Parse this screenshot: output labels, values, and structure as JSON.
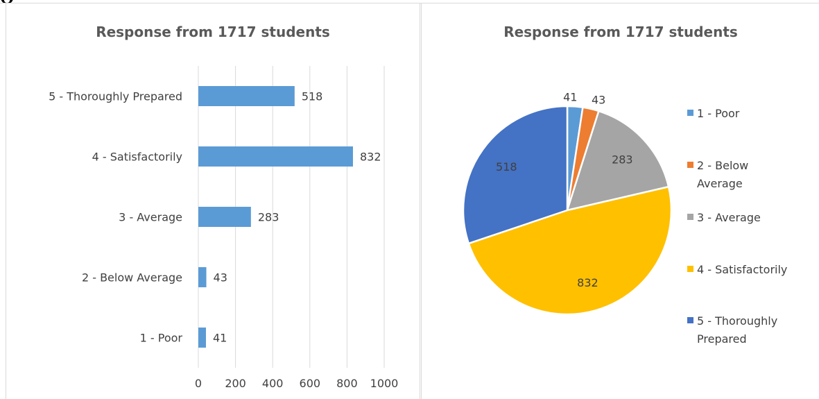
{
  "header": {
    "text": "Q"
  },
  "chart_data": [
    {
      "type": "bar",
      "orientation": "horizontal",
      "title": "Response from 1717 students",
      "categories": [
        "1 - Poor",
        "2 -  Below Average",
        "3 - Average",
        "4 -  Satisfactorily",
        "5 - Thoroughly Prepared"
      ],
      "values": [
        41,
        43,
        283,
        832,
        518
      ],
      "xlim": [
        0,
        1000
      ],
      "xticks": [
        "0",
        "200",
        "400",
        "600",
        "800",
        "1000"
      ],
      "grid": true,
      "color": "#5B9BD5",
      "data_labels": true
    },
    {
      "type": "pie",
      "title": "Response from 1717 students",
      "labels": [
        "1 - Poor",
        "2 -  Below Average",
        "3 - Average",
        "4 -  Satisfactorily",
        "5 - Thoroughly Prepared"
      ],
      "legend_lines": [
        [
          "1 - Poor"
        ],
        [
          "2 -  Below",
          "Average"
        ],
        [
          "3 - Average"
        ],
        [
          "4 -  Satisfactorily"
        ],
        [
          "5 - Thoroughly",
          "Prepared"
        ]
      ],
      "values": [
        41,
        43,
        283,
        832,
        518
      ],
      "colors": [
        "#5B9BD5",
        "#ED7D31",
        "#A5A5A5",
        "#FFC000",
        "#4472C4"
      ],
      "legend_position": "right",
      "data_labels": true
    }
  ]
}
